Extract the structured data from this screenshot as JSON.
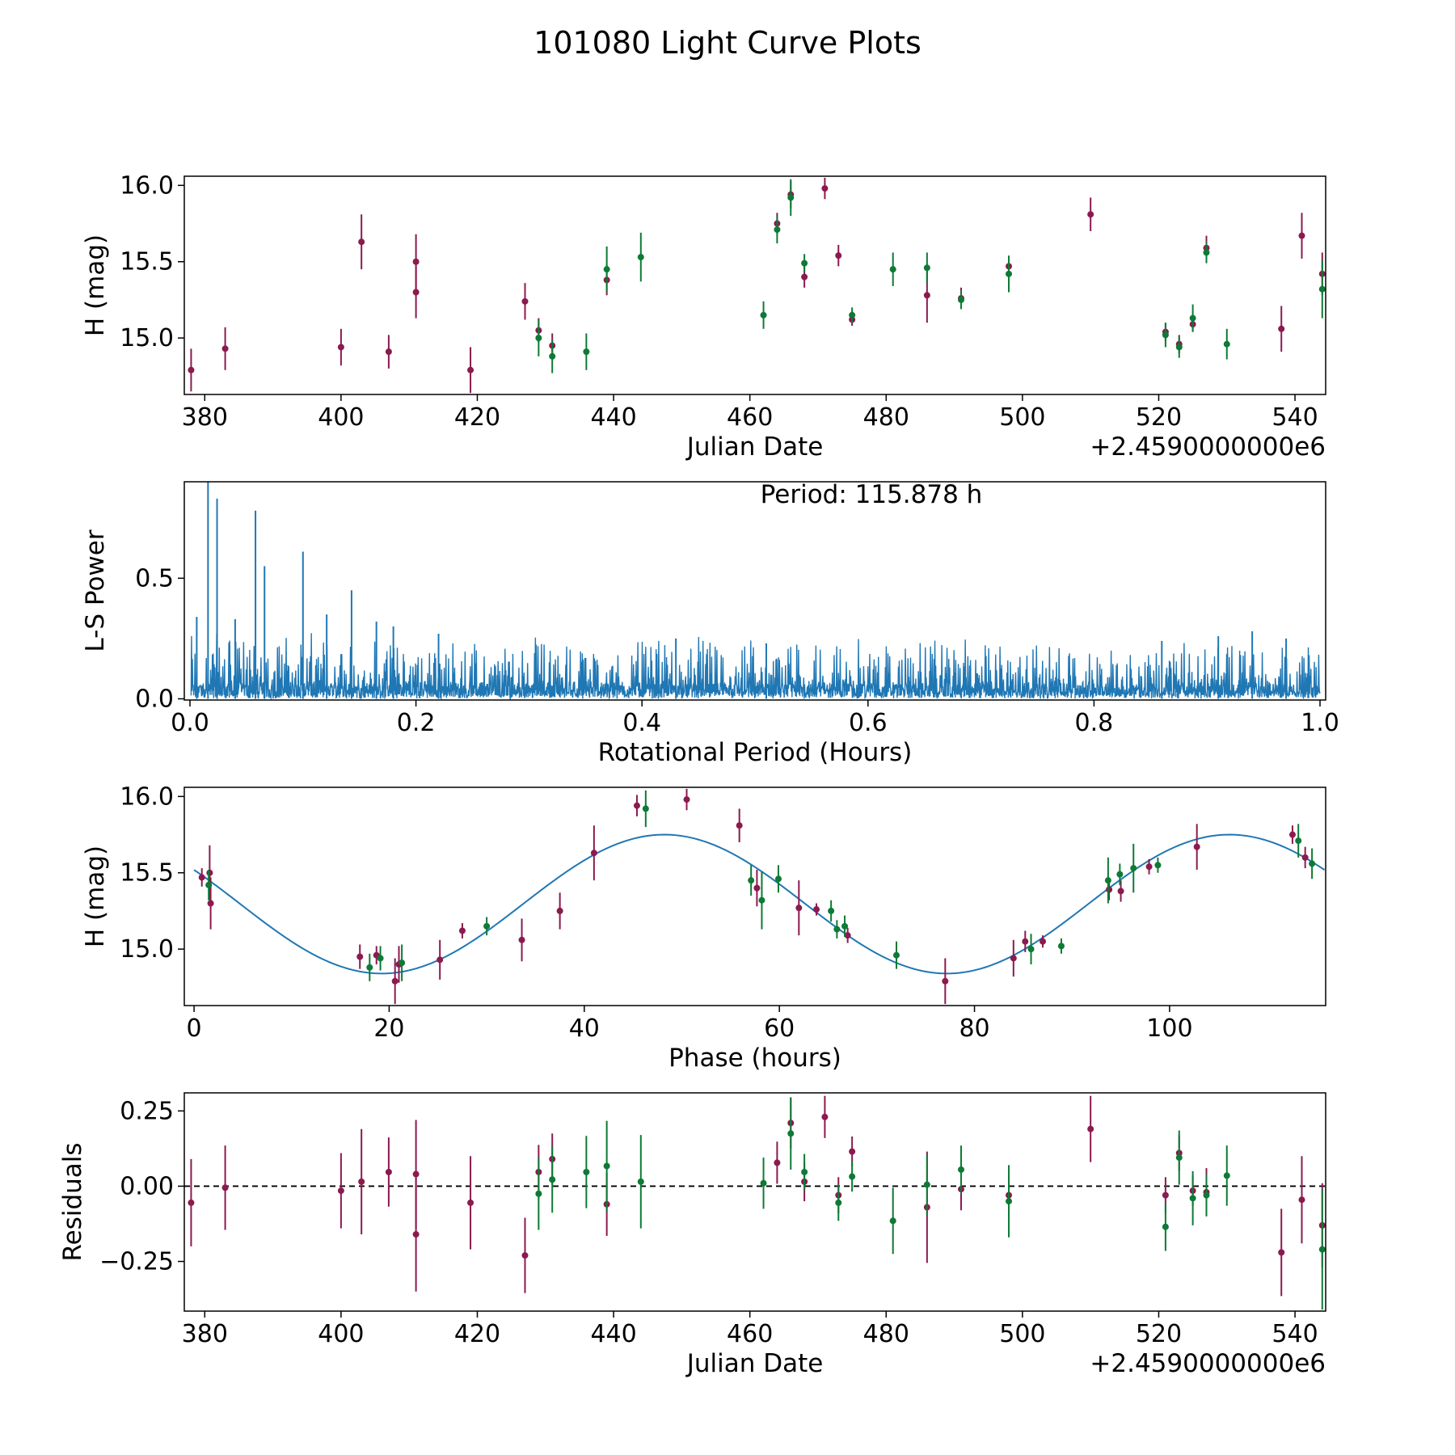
{
  "suptitle": "101080 Light Curve Plots",
  "colors": {
    "red": "#8b1a4f",
    "green": "#0d7a35",
    "blue": "#1f77b4",
    "frame": "#000000"
  },
  "chart_data": [
    {
      "id": "lc",
      "type": "scatter",
      "xlabel": "Julian Date",
      "ylabel": "H (mag)",
      "offset_text": "+2.4590000000e6",
      "xlim": [
        377,
        544.5
      ],
      "ylim": [
        14.63,
        16.06
      ],
      "xticks": [
        380,
        400,
        420,
        440,
        460,
        480,
        500,
        520,
        540
      ],
      "yticks": [
        15.0,
        15.5,
        16.0
      ],
      "ytick_labels": [
        "15.0",
        "15.5",
        "16.0"
      ],
      "series": [
        {
          "name": "red",
          "color_key": "red",
          "points": [
            [
              378.0,
              14.79,
              0.14
            ],
            [
              383.0,
              14.93,
              0.14
            ],
            [
              400.0,
              14.94,
              0.12
            ],
            [
              403.0,
              15.63,
              0.18
            ],
            [
              407.0,
              14.91,
              0.11
            ],
            [
              411.0,
              15.5,
              0.18
            ],
            [
              411.0,
              15.3,
              0.17
            ],
            [
              419.0,
              14.79,
              0.15
            ],
            [
              427.0,
              15.24,
              0.12
            ],
            [
              429.0,
              15.05,
              0.08
            ],
            [
              431.0,
              14.95,
              0.08
            ],
            [
              439.0,
              15.38,
              0.1
            ],
            [
              464.0,
              15.75,
              0.07
            ],
            [
              466.0,
              15.94,
              0.09
            ],
            [
              468.0,
              15.4,
              0.07
            ],
            [
              471.0,
              15.98,
              0.07
            ],
            [
              473.0,
              15.54,
              0.07
            ],
            [
              475.0,
              15.12,
              0.04
            ],
            [
              486.0,
              15.28,
              0.18
            ],
            [
              491.0,
              15.26,
              0.07
            ],
            [
              498.0,
              15.47,
              0.06
            ],
            [
              510.0,
              15.81,
              0.11
            ],
            [
              521.0,
              15.04,
              0.06
            ],
            [
              523.0,
              14.96,
              0.06
            ],
            [
              525.0,
              15.09,
              0.05
            ],
            [
              527.0,
              15.59,
              0.08
            ],
            [
              538.0,
              15.06,
              0.15
            ],
            [
              541.0,
              15.67,
              0.15
            ],
            [
              544.0,
              15.42,
              0.14
            ]
          ]
        },
        {
          "name": "green",
          "color_key": "green",
          "points": [
            [
              429.0,
              15.0,
              0.12
            ],
            [
              431.0,
              14.88,
              0.11
            ],
            [
              436.0,
              14.91,
              0.12
            ],
            [
              439.0,
              15.45,
              0.15
            ],
            [
              444.0,
              15.53,
              0.16
            ],
            [
              462.0,
              15.15,
              0.09
            ],
            [
              464.0,
              15.71,
              0.09
            ],
            [
              466.0,
              15.92,
              0.12
            ],
            [
              468.0,
              15.49,
              0.06
            ],
            [
              475.0,
              15.15,
              0.05
            ],
            [
              481.0,
              15.45,
              0.11
            ],
            [
              486.0,
              15.46,
              0.1
            ],
            [
              491.0,
              15.25,
              0.06
            ],
            [
              498.0,
              15.42,
              0.12
            ],
            [
              521.0,
              15.02,
              0.08
            ],
            [
              523.0,
              14.94,
              0.07
            ],
            [
              525.0,
              15.13,
              0.09
            ],
            [
              527.0,
              15.56,
              0.07
            ],
            [
              530.0,
              14.96,
              0.1
            ],
            [
              544.0,
              15.32,
              0.19
            ]
          ]
        }
      ]
    },
    {
      "id": "ls",
      "type": "line",
      "xlabel": "Rotational Period (Hours)",
      "ylabel": "L-S Power",
      "annotation": "Period: 115.878 h",
      "xlim": [
        -0.005,
        1.005
      ],
      "ylim": [
        -0.005,
        0.9
      ],
      "xticks": [
        0.0,
        0.2,
        0.4,
        0.6,
        0.8,
        1.0
      ],
      "xtick_labels": [
        "0.0",
        "0.2",
        "0.4",
        "0.6",
        "0.8",
        "1.0"
      ],
      "yticks": [
        0.0,
        0.5
      ],
      "ytick_labels": [
        "0.0",
        "0.5"
      ],
      "peaks": [
        [
          0.016,
          0.9
        ],
        [
          0.024,
          0.83
        ],
        [
          0.058,
          0.78
        ],
        [
          0.066,
          0.55
        ],
        [
          0.1,
          0.61
        ],
        [
          0.143,
          0.45
        ],
        [
          0.006,
          0.34
        ],
        [
          0.04,
          0.33
        ],
        [
          0.121,
          0.35
        ],
        [
          0.165,
          0.32
        ],
        [
          0.18,
          0.3
        ],
        [
          0.22,
          0.27
        ],
        [
          0.43,
          0.25
        ],
        [
          0.51,
          0.23
        ],
        [
          0.86,
          0.24
        ],
        [
          0.91,
          0.26
        ],
        [
          0.94,
          0.28
        ],
        [
          0.97,
          0.25
        ]
      ],
      "noise_base": 0.06,
      "noise_amp_start": 0.25,
      "noise_amp_end": 0.2
    },
    {
      "id": "phase",
      "type": "scatter",
      "xlabel": "Phase (hours)",
      "ylabel": "H (mag)",
      "xlim": [
        -1,
        116
      ],
      "ylim": [
        14.63,
        16.06
      ],
      "xticks": [
        0,
        20,
        40,
        60,
        80,
        100
      ],
      "yticks": [
        15.0,
        15.5,
        16.0
      ],
      "ytick_labels": [
        "15.0",
        "15.5",
        "16.0"
      ],
      "model": {
        "period": 57.94,
        "mean": 15.295,
        "amplitude": 0.455,
        "peak_phase": 48.2,
        "x_range": [
          0,
          115.878
        ]
      },
      "series": [
        {
          "name": "red",
          "color_key": "red",
          "points": [
            [
              0.8,
              15.47,
              0.06
            ],
            [
              1.6,
              15.5,
              0.18
            ],
            [
              1.7,
              15.3,
              0.17
            ],
            [
              17.0,
              14.95,
              0.08
            ],
            [
              18.7,
              14.96,
              0.06
            ],
            [
              21.0,
              14.9,
              0.12
            ],
            [
              20.6,
              14.79,
              0.15
            ],
            [
              25.2,
              14.93,
              0.13
            ],
            [
              27.5,
              15.12,
              0.05
            ],
            [
              33.6,
              15.06,
              0.14
            ],
            [
              37.5,
              15.25,
              0.12
            ],
            [
              41.0,
              15.63,
              0.18
            ],
            [
              45.4,
              15.94,
              0.07
            ],
            [
              50.5,
              15.98,
              0.07
            ],
            [
              55.9,
              15.81,
              0.11
            ],
            [
              57.7,
              15.4,
              0.12
            ],
            [
              62.0,
              15.27,
              0.18
            ],
            [
              63.8,
              15.26,
              0.04
            ],
            [
              67.0,
              15.09,
              0.05
            ],
            [
              77.0,
              14.79,
              0.15
            ],
            [
              84.0,
              14.94,
              0.12
            ],
            [
              85.2,
              15.05,
              0.07
            ],
            [
              87.0,
              15.05,
              0.04
            ],
            [
              93.8,
              15.39,
              0.07
            ],
            [
              95.0,
              15.38,
              0.07
            ],
            [
              97.9,
              15.54,
              0.05
            ],
            [
              102.8,
              15.67,
              0.15
            ],
            [
              112.6,
              15.75,
              0.06
            ],
            [
              113.9,
              15.6,
              0.07
            ]
          ]
        },
        {
          "name": "green",
          "color_key": "green",
          "points": [
            [
              1.5,
              15.42,
              0.1
            ],
            [
              18.0,
              14.88,
              0.09
            ],
            [
              19.1,
              14.94,
              0.08
            ],
            [
              21.3,
              14.91,
              0.12
            ],
            [
              30.0,
              15.15,
              0.06
            ],
            [
              46.3,
              15.92,
              0.12
            ],
            [
              57.1,
              15.45,
              0.1
            ],
            [
              58.2,
              15.32,
              0.19
            ],
            [
              59.9,
              15.46,
              0.09
            ],
            [
              65.3,
              15.25,
              0.07
            ],
            [
              65.9,
              15.13,
              0.06
            ],
            [
              66.7,
              15.15,
              0.07
            ],
            [
              72.0,
              14.96,
              0.09
            ],
            [
              85.8,
              15.0,
              0.1
            ],
            [
              88.9,
              15.02,
              0.05
            ],
            [
              93.7,
              15.45,
              0.15
            ],
            [
              94.9,
              15.49,
              0.07
            ],
            [
              96.3,
              15.53,
              0.16
            ],
            [
              98.8,
              15.55,
              0.05
            ],
            [
              113.2,
              15.71,
              0.11
            ],
            [
              114.6,
              15.56,
              0.1
            ]
          ]
        }
      ]
    },
    {
      "id": "resid",
      "type": "scatter",
      "xlabel": "Julian Date",
      "ylabel": "Residuals",
      "offset_text": "+2.4590000000e6",
      "xlim": [
        377,
        544.5
      ],
      "ylim": [
        -0.415,
        0.31
      ],
      "xticks": [
        380,
        400,
        420,
        440,
        460,
        480,
        500,
        520,
        540
      ],
      "yticks": [
        -0.25,
        0.0,
        0.25
      ],
      "ytick_labels": [
        "−0.25",
        "0.00",
        "0.25"
      ],
      "zero_line": true,
      "series": [
        {
          "name": "red",
          "color_key": "red",
          "points": [
            [
              378.0,
              -0.055,
              0.145
            ],
            [
              383.0,
              -0.005,
              0.14
            ],
            [
              400.0,
              -0.015,
              0.125
            ],
            [
              403.0,
              0.015,
              0.175
            ],
            [
              407.0,
              0.047,
              0.115
            ],
            [
              411.0,
              0.04,
              0.18
            ],
            [
              411.0,
              -0.16,
              0.19
            ],
            [
              419.0,
              -0.055,
              0.155
            ],
            [
              427.0,
              -0.23,
              0.125
            ],
            [
              429.0,
              0.047,
              0.09
            ],
            [
              431.0,
              0.09,
              0.085
            ],
            [
              439.0,
              -0.06,
              0.105
            ],
            [
              464.0,
              0.078,
              0.07
            ],
            [
              466.0,
              0.21,
              0.085
            ],
            [
              468.0,
              0.015,
              0.065
            ],
            [
              471.0,
              0.23,
              0.07
            ],
            [
              473.0,
              -0.03,
              0.06
            ],
            [
              475.0,
              0.115,
              0.05
            ],
            [
              486.0,
              -0.07,
              0.185
            ],
            [
              491.0,
              -0.01,
              0.07
            ],
            [
              498.0,
              -0.03,
              0.06
            ],
            [
              510.0,
              0.19,
              0.11
            ],
            [
              521.0,
              -0.03,
              0.06
            ],
            [
              523.0,
              0.11,
              0.06
            ],
            [
              525.0,
              -0.015,
              0.05
            ],
            [
              527.0,
              -0.02,
              0.08
            ],
            [
              538.0,
              -0.22,
              0.145
            ],
            [
              541.0,
              -0.045,
              0.145
            ],
            [
              544.0,
              -0.13,
              0.14
            ]
          ]
        },
        {
          "name": "green",
          "color_key": "green",
          "points": [
            [
              429.0,
              -0.025,
              0.12
            ],
            [
              431.0,
              0.022,
              0.11
            ],
            [
              436.0,
              0.047,
              0.12
            ],
            [
              439.0,
              0.067,
              0.15
            ],
            [
              444.0,
              0.015,
              0.155
            ],
            [
              462.0,
              0.01,
              0.085
            ],
            [
              466.0,
              0.175,
              0.12
            ],
            [
              468.0,
              0.047,
              0.06
            ],
            [
              473.0,
              -0.055,
              0.06
            ],
            [
              475.0,
              0.032,
              0.05
            ],
            [
              481.0,
              -0.115,
              0.11
            ],
            [
              486.0,
              0.005,
              0.1
            ],
            [
              491.0,
              0.055,
              0.08
            ],
            [
              498.0,
              -0.05,
              0.12
            ],
            [
              521.0,
              -0.135,
              0.08
            ],
            [
              523.0,
              0.095,
              0.09
            ],
            [
              525.0,
              -0.04,
              0.09
            ],
            [
              527.0,
              -0.03,
              0.07
            ],
            [
              530.0,
              0.035,
              0.1
            ],
            [
              544.0,
              -0.21,
              0.2
            ]
          ]
        }
      ]
    }
  ]
}
